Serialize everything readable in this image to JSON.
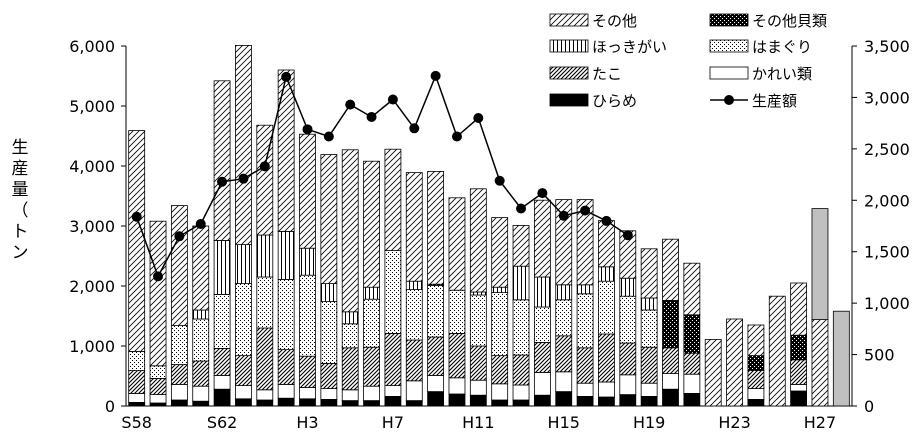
{
  "chart_data": {
    "type": "bar",
    "stacked": true,
    "secondary_line": true,
    "ylabel": "生産量（トン）",
    "ylim": [
      0,
      6000
    ],
    "y2lim": [
      0,
      3500
    ],
    "yticks": [
      "0",
      "1,000",
      "2,000",
      "3,000",
      "4,000",
      "5,000",
      "6,000"
    ],
    "y2ticks": [
      "0",
      "500",
      "1,000",
      "1,500",
      "2,000",
      "2,500",
      "3,000",
      "3,500"
    ],
    "categories": [
      "S58",
      "S59",
      "S60",
      "S61",
      "S62",
      "S63",
      "H1",
      "H2",
      "H3",
      "H4",
      "H5",
      "H6",
      "H7",
      "H8",
      "H9",
      "H10",
      "H11",
      "H12",
      "H13",
      "H14",
      "H15",
      "H16",
      "H17",
      "H18",
      "H19",
      "H20",
      "H21",
      "H22",
      "H23",
      "H24",
      "H25",
      "H26",
      "H27",
      "H28"
    ],
    "xtick_labels": [
      "S58",
      "",
      "",
      "",
      "S62",
      "",
      "",
      "",
      "H3",
      "",
      "",
      "",
      "H7",
      "",
      "",
      "",
      "H11",
      "",
      "",
      "",
      "H15",
      "",
      "",
      "",
      "H19",
      "",
      "",
      "",
      "H23",
      "",
      "",
      "",
      "H27",
      ""
    ],
    "legend_position": "top-right",
    "series": [
      {
        "name": "ひらめ",
        "pattern": "solid-black",
        "values": [
          60,
          50,
          100,
          80,
          280,
          120,
          100,
          130,
          120,
          110,
          90,
          90,
          160,
          90,
          240,
          200,
          180,
          100,
          100,
          180,
          240,
          160,
          150,
          190,
          160,
          280,
          210,
          0,
          0,
          110,
          0,
          250,
          0,
          0
        ]
      },
      {
        "name": "かれい類",
        "pattern": "blank",
        "values": [
          150,
          140,
          260,
          250,
          230,
          220,
          170,
          230,
          190,
          180,
          180,
          240,
          180,
          330,
          270,
          270,
          250,
          270,
          250,
          380,
          330,
          220,
          250,
          330,
          220,
          260,
          320,
          0,
          0,
          180,
          0,
          110,
          0,
          0
        ]
      },
      {
        "name": "たこ",
        "pattern": "diagonal-dense",
        "values": [
          380,
          270,
          330,
          420,
          450,
          500,
          1030,
          580,
          520,
          420,
          700,
          650,
          870,
          680,
          640,
          740,
          570,
          470,
          500,
          500,
          600,
          590,
          800,
          530,
          600,
          430,
          350,
          0,
          0,
          300,
          0,
          410,
          0,
          0
        ]
      },
      {
        "name": "はまぐり",
        "pattern": "dots",
        "values": [
          320,
          210,
          650,
          700,
          900,
          1200,
          850,
          1170,
          1350,
          1030,
          400,
          800,
          1380,
          840,
          860,
          720,
          850,
          1050,
          920,
          590,
          600,
          900,
          880,
          780,
          620,
          0,
          0,
          0,
          0,
          0,
          0,
          0,
          0,
          0
        ]
      },
      {
        "name": "ほっきがい",
        "pattern": "vertical-lines",
        "values": [
          0,
          0,
          0,
          150,
          900,
          650,
          700,
          800,
          450,
          300,
          200,
          200,
          0,
          140,
          0,
          0,
          50,
          90,
          560,
          500,
          250,
          150,
          240,
          300,
          200,
          0,
          0,
          0,
          0,
          0,
          0,
          0,
          0,
          0
        ]
      },
      {
        "name": "その他貝類",
        "pattern": "checker",
        "values": [
          0,
          0,
          0,
          0,
          0,
          0,
          0,
          0,
          0,
          0,
          0,
          0,
          0,
          0,
          20,
          0,
          0,
          0,
          0,
          0,
          0,
          0,
          0,
          0,
          0,
          790,
          640,
          0,
          0,
          250,
          0,
          410,
          0,
          0
        ]
      },
      {
        "name": "その他",
        "pattern": "diagonal-sparse",
        "values": [
          3680,
          2410,
          2000,
          1400,
          2660,
          3320,
          1830,
          2690,
          1900,
          2150,
          2700,
          2100,
          1690,
          1810,
          1880,
          1540,
          1720,
          1160,
          680,
          1280,
          1420,
          1420,
          770,
          790,
          820,
          1020,
          860,
          1110,
          1450,
          510,
          1830,
          870,
          1440,
          0
        ]
      },
      {
        "name": "",
        "pattern": "solid-gray",
        "values": [
          0,
          0,
          0,
          0,
          0,
          0,
          0,
          0,
          0,
          0,
          0,
          0,
          0,
          0,
          0,
          0,
          0,
          0,
          0,
          0,
          0,
          0,
          0,
          0,
          0,
          0,
          0,
          0,
          0,
          0,
          0,
          0,
          1850,
          1580
        ]
      }
    ],
    "line": {
      "name": "生産額",
      "values": [
        1840,
        1260,
        1650,
        1770,
        2180,
        2210,
        2330,
        3200,
        2690,
        2620,
        2930,
        2810,
        2980,
        2700,
        3210,
        2620,
        2800,
        2190,
        1920,
        2070,
        1850,
        1900,
        1800,
        1660
      ]
    }
  }
}
